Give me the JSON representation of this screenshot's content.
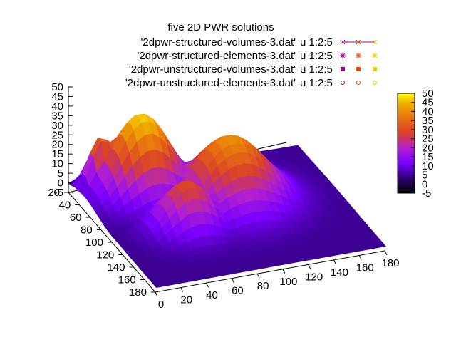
{
  "chart_data": {
    "type": "surface3d",
    "title": "five 2D PWR solutions",
    "legend": {
      "placement": "top-right",
      "entries": [
        {
          "file": "'2dpwr-structured-volumes-3.dat'",
          "using": "u 1:2:5",
          "marker": "line-cross"
        },
        {
          "file": "'2dpwr-structured-elements-3.dat'",
          "using": "u 1:2:5",
          "marker": "star"
        },
        {
          "file": "'2dpwr-unstructured-volumes-3.dat'",
          "using": "u 1:2:5",
          "marker": "filled-square"
        },
        {
          "file": "'2dpwr-unstructured-elements-3.dat'",
          "using": "u 1:2:5",
          "marker": "open-circle"
        }
      ]
    },
    "x_axis": {
      "range": [
        0,
        180
      ],
      "ticks": [
        "0",
        "20",
        "40",
        "60",
        "80",
        "100",
        "120",
        "140",
        "160",
        "180"
      ]
    },
    "y_axis": {
      "range": [
        20,
        180
      ],
      "ticks": [
        "20",
        "40",
        "60",
        "80",
        "100",
        "120",
        "140",
        "160",
        "180"
      ]
    },
    "z_axis": {
      "range": [
        -5,
        50
      ],
      "ticks": [
        "-5",
        "0",
        "5",
        "10",
        "15",
        "20",
        "25",
        "30",
        "35",
        "40",
        "45",
        "50"
      ]
    },
    "colorbox": {
      "range": [
        -5,
        50
      ],
      "ticks": [
        "-5",
        "0",
        "5",
        "10",
        "15",
        "20",
        "25",
        "30",
        "35",
        "40",
        "45",
        "50"
      ],
      "palette": [
        "#000000",
        "#3a0090",
        "#7a00ff",
        "#b020d0",
        "#d8402a",
        "#e87010",
        "#f0b000",
        "#ffff00"
      ]
    },
    "series_colors": [
      "#940094",
      "#a0005a",
      "#e05000",
      "#f0d000"
    ],
    "surface_peaks": [
      {
        "x": 45,
        "y": 50,
        "z": 45
      },
      {
        "x": 100,
        "y": 85,
        "z": 38
      },
      {
        "x": 20,
        "y": 35,
        "z": 32
      },
      {
        "x": 55,
        "y": 110,
        "z": 28
      }
    ]
  }
}
